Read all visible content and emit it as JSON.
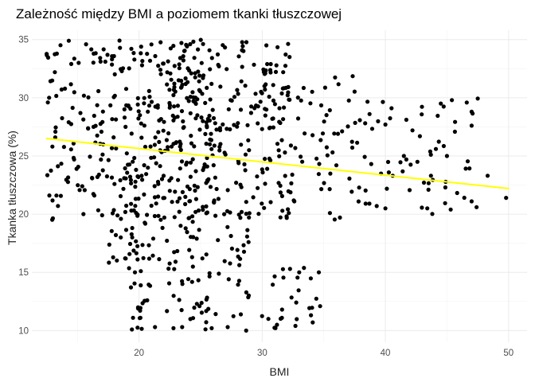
{
  "chart_data": {
    "type": "scatter",
    "title": "Zależność między BMI a poziomem tkanki tłuszczowej",
    "xlabel": "BMI",
    "ylabel": "Tkanka tłuszczowa (%)",
    "xlim": [
      11.3,
      51.5
    ],
    "ylim": [
      9.0,
      35.8
    ],
    "x_ticks": [
      20,
      30,
      40,
      50
    ],
    "y_ticks": [
      10,
      15,
      20,
      25,
      30,
      35
    ],
    "x_tick_labels": [
      "20",
      "30",
      "40",
      "50"
    ],
    "y_tick_labels": [
      "10",
      "15",
      "20",
      "25",
      "30",
      "35"
    ],
    "grid": true,
    "point_color": "#000000",
    "trend_color": "#ffff00",
    "trend_line": {
      "type": "linear",
      "x": [
        12.5,
        50.0
      ],
      "y": [
        26.5,
        22.2
      ]
    },
    "random_seed": 7,
    "point_clusters": [
      {
        "x": [
          12.5,
          18.5
        ],
        "y": [
          19.5,
          35.0
        ],
        "n": 110
      },
      {
        "x": [
          18.5,
          25.5
        ],
        "y": [
          19.5,
          35.0
        ],
        "n": 260
      },
      {
        "x": [
          25.5,
          32.5
        ],
        "y": [
          19.5,
          35.0
        ],
        "n": 190
      },
      {
        "x": [
          32.5,
          38.5
        ],
        "y": [
          19.5,
          32.0
        ],
        "n": 55
      },
      {
        "x": [
          38.5,
          47.5
        ],
        "y": [
          20.0,
          30.0
        ],
        "n": 42
      },
      {
        "x": [
          17.5,
          20.5
        ],
        "y": [
          15.0,
          19.0
        ],
        "n": 18
      },
      {
        "x": [
          19.0,
          24.5
        ],
        "y": [
          10.0,
          19.5
        ],
        "n": 55
      },
      {
        "x": [
          24.0,
          29.0
        ],
        "y": [
          10.0,
          19.0
        ],
        "n": 48
      },
      {
        "x": [
          29.5,
          35.0
        ],
        "y": [
          10.0,
          15.5
        ],
        "n": 22
      }
    ],
    "points": [
      [
        12.7,
        30.0
      ],
      [
        12.6,
        29.6
      ],
      [
        13.2,
        26.6
      ],
      [
        13.3,
        21.6
      ],
      [
        14.3,
        34.9
      ],
      [
        15.7,
        34.6
      ],
      [
        14.5,
        32.9
      ],
      [
        15.1,
        33.0
      ],
      [
        45.4,
        29.8
      ],
      [
        44.5,
        29.5
      ],
      [
        47.0,
        28.8
      ],
      [
        47.0,
        27.6
      ],
      [
        48.3,
        23.3
      ],
      [
        49.8,
        21.4
      ],
      [
        47.0,
        21.1
      ],
      [
        47.4,
        20.6
      ],
      [
        45.3,
        20.4
      ],
      [
        43.4,
        20.5
      ],
      [
        43.5,
        22.1
      ],
      [
        43.7,
        23.3
      ],
      [
        45.0,
        25.0
      ],
      [
        44.1,
        25.6
      ],
      [
        42.6,
        24.5
      ],
      [
        42.8,
        26.7
      ],
      [
        41.7,
        24.7
      ],
      [
        41.5,
        25.0
      ],
      [
        40.6,
        23.3
      ],
      [
        40.0,
        20.5
      ],
      [
        39.3,
        20.7
      ],
      [
        38.7,
        20.9
      ],
      [
        38.4,
        20.9
      ],
      [
        40.0,
        27.7
      ],
      [
        40.5,
        29.1
      ],
      [
        42.2,
        27.2
      ],
      [
        22.8,
        10.2
      ],
      [
        23.5,
        10.3
      ],
      [
        25.9,
        10.2
      ],
      [
        27.2,
        10.3
      ],
      [
        28.7,
        10.0
      ],
      [
        21.3,
        10.3
      ],
      [
        33.0,
        15.0
      ],
      [
        34.6,
        15.0
      ],
      [
        34.7,
        12.1
      ],
      [
        34.1,
        10.7
      ],
      [
        32.7,
        10.4
      ],
      [
        31.2,
        10.5
      ],
      [
        30.5,
        11.0
      ]
    ]
  }
}
